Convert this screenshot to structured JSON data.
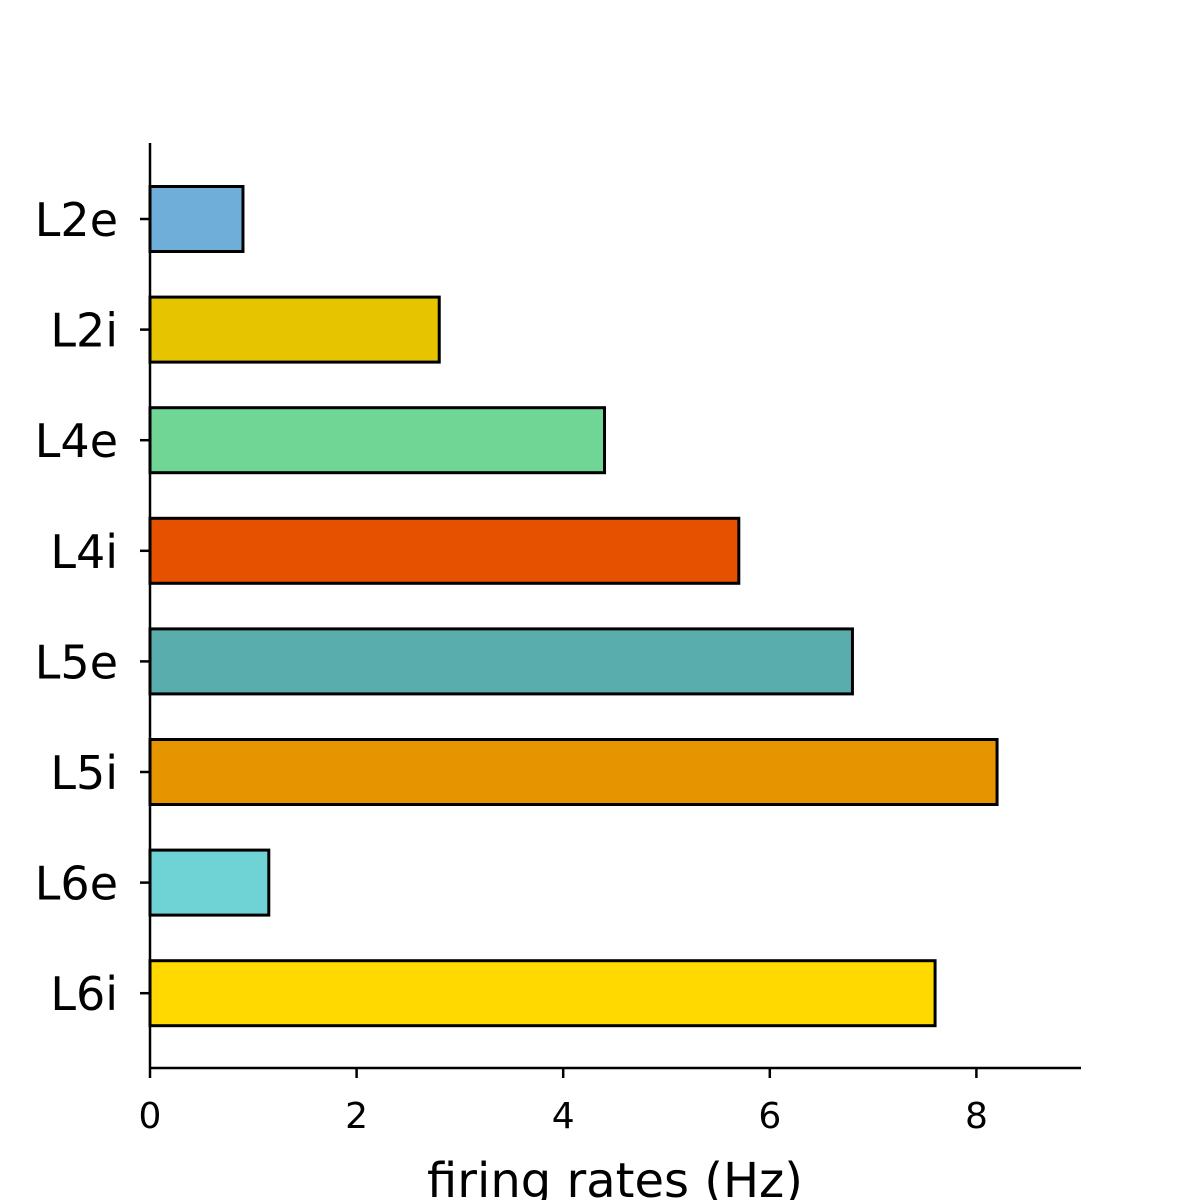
{
  "chart_data": {
    "type": "bar",
    "orientation": "horizontal",
    "title": "",
    "xlabel": "firing rates (Hz)",
    "ylabel": "",
    "categories": [
      "L2e",
      "L2i",
      "L4e",
      "L4i",
      "L5e",
      "L5i",
      "L6e",
      "L6i"
    ],
    "values": [
      0.9,
      2.8,
      4.4,
      5.7,
      6.8,
      8.2,
      1.15,
      7.6
    ],
    "colors": [
      "#6faed9",
      "#e6c400",
      "#6fd696",
      "#e65100",
      "#5aadad",
      "#e69500",
      "#6fd3d6",
      "#ffd900"
    ],
    "xlim": [
      0,
      9
    ],
    "xticks": [
      0,
      2,
      4,
      6,
      8
    ],
    "grid": false,
    "legend": "none"
  }
}
